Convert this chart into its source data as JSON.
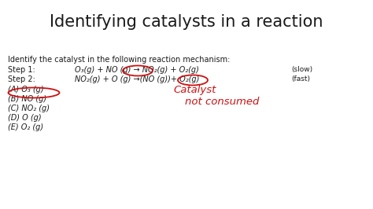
{
  "title": "Identifying catalysts in a reaction",
  "title_fontsize": 15,
  "bg_color": "#ffffff",
  "text_color": "#1a1a1a",
  "red_color": "#cc1111",
  "body_fontsize": 7.0,
  "line0": "Identify the catalyst in the following reaction mechanism:",
  "step1_label": "Step 1:",
  "step2_label": "Step 2:",
  "step1_eq": "O₃(g) + NO (g) → NO₂(g) + O₂(g)",
  "step2_eq": "NO₂(g) + O (g) →(NO (g))+ O₂(g)",
  "step1_rate": "(slow)",
  "step2_rate": "(fast)",
  "choices": [
    "(A) O₃ (g)",
    "(B) NO (g)",
    "(C) NO₂ (g)",
    "(D) O (g)",
    "(E) O₂ (g)"
  ],
  "handwriting_line1": "Catalyst",
  "handwriting_line2": "not consumed",
  "hw_fontsize": 9.5
}
